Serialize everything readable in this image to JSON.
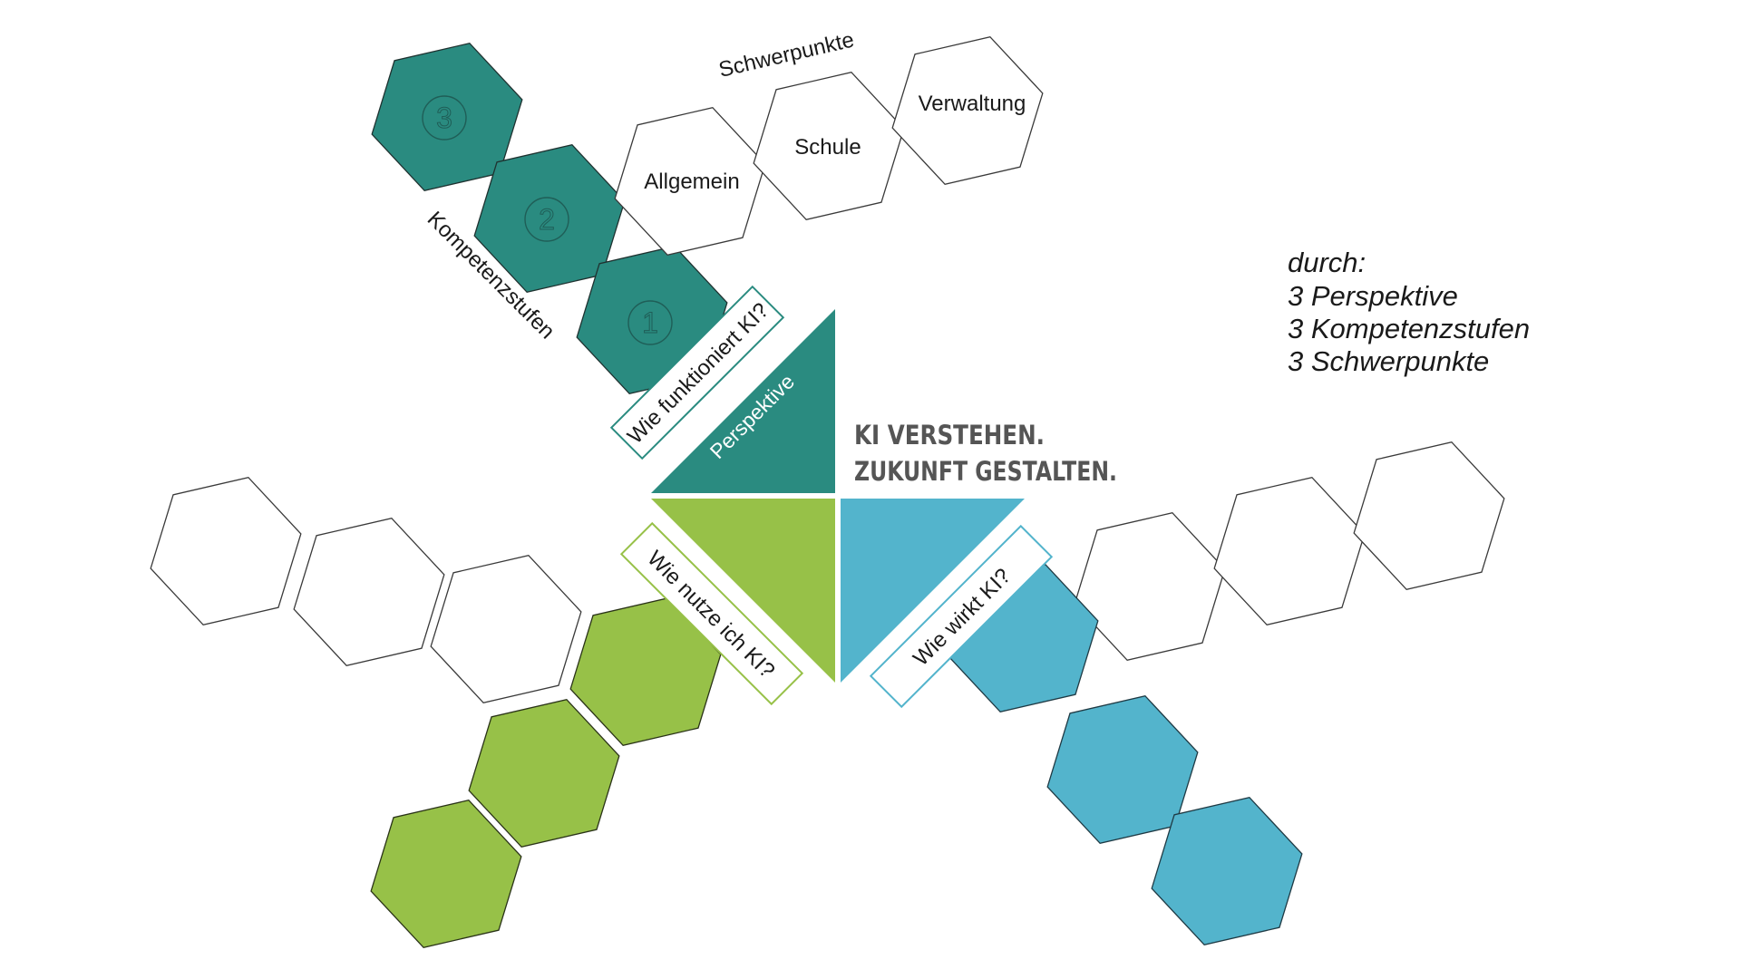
{
  "diagram": {
    "title": {
      "line1": "KI VERSTEHEN.",
      "line2": "ZUKUNFT GESTALTEN."
    },
    "central_label": "Perspektive",
    "perspectives": [
      {
        "question": "Wie funktioniert KI?",
        "color": "#2a8b80"
      },
      {
        "question": "Wie nutze ich KI?",
        "color": "#97c148"
      },
      {
        "question": "Wie wirkt KI?",
        "color": "#53b4cc"
      }
    ],
    "competence_levels": {
      "label": "Kompetenzstufen",
      "levels": [
        "1",
        "2",
        "3"
      ]
    },
    "focus_areas": {
      "label": "Schwerpunkte",
      "items": [
        "Allgemein",
        "Schule",
        "Verwaltung"
      ]
    },
    "summary": {
      "heading": "durch:",
      "lines": [
        "3 Perspektive",
        "3 Kompetenzstufen",
        "3 Schwerpunkte"
      ]
    },
    "colors": {
      "teal": "#2a8b80",
      "green": "#97c148",
      "blue": "#53b4cc",
      "title_gray": "#555555"
    }
  }
}
